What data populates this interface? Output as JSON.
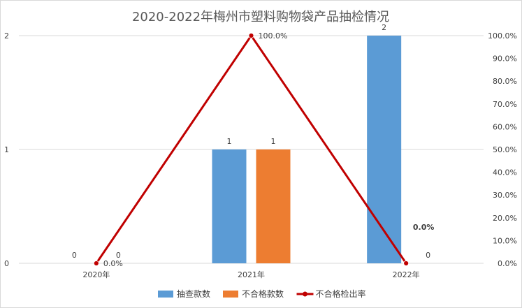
{
  "chart_data": {
    "type": "bar",
    "title": "2020-2022年梅州市塑料购物袋产品抽检情况",
    "categories": [
      "2020年",
      "2021年",
      "2022年"
    ],
    "series": [
      {
        "name": "抽查款数",
        "kind": "bar",
        "axis": "left",
        "values": [
          0,
          1,
          2
        ],
        "labels": [
          "0",
          "1",
          "2"
        ],
        "color": "#5b9bd5"
      },
      {
        "name": "不合格款数",
        "kind": "bar",
        "axis": "left",
        "values": [
          0,
          1,
          0
        ],
        "labels": [
          "0",
          "1",
          "0"
        ],
        "color": "#ed7d31"
      },
      {
        "name": "不合格检出率",
        "kind": "line",
        "axis": "right",
        "values": [
          0,
          100,
          0
        ],
        "labels": [
          "0.0%",
          "100.0%",
          "0.0%"
        ],
        "color": "#c00000"
      }
    ],
    "y_left": {
      "ticks": [
        "0",
        "1",
        "2"
      ],
      "range": [
        0,
        2
      ]
    },
    "y_right": {
      "ticks": [
        "0.0%",
        "10.0%",
        "20.0%",
        "30.0%",
        "40.0%",
        "50.0%",
        "60.0%",
        "70.0%",
        "80.0%",
        "90.0%",
        "100.0%"
      ],
      "range": [
        0,
        100
      ]
    },
    "grid": true,
    "legend": "bottom"
  }
}
